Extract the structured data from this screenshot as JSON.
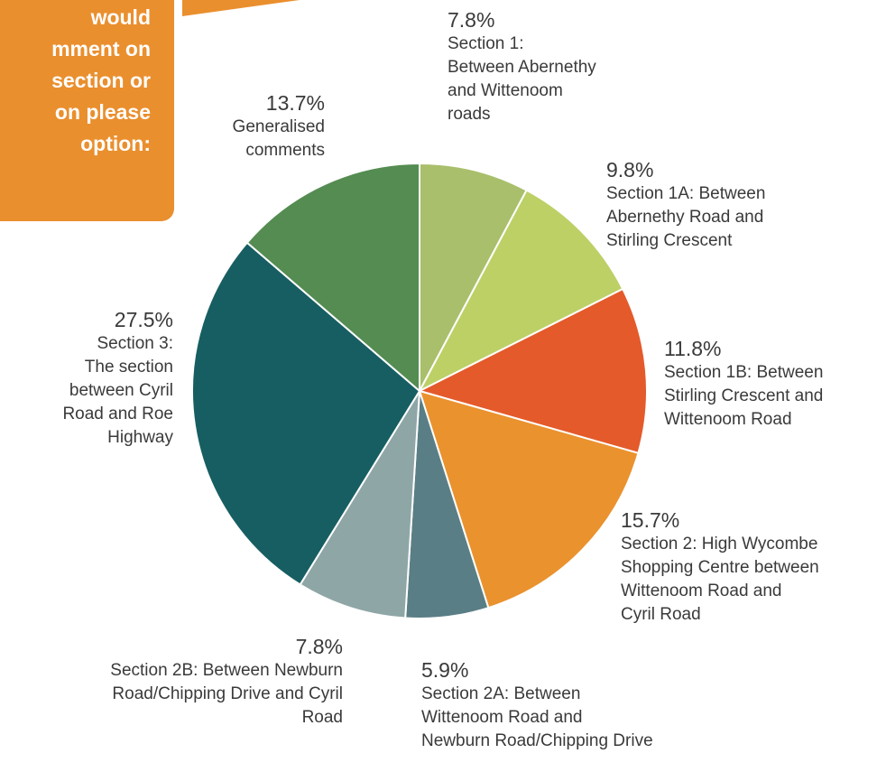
{
  "callout": {
    "text": "would\nmment on\nsection or\non please\noption:"
  },
  "colors": {
    "accent": "#ea8f2e",
    "slice_border": "#ffffff"
  },
  "chart_data": {
    "type": "pie",
    "title": "",
    "slices": [
      {
        "label": "Section 1:\nBetween Abernethy\nand Wittenoom\nroads",
        "percent_label": "7.8%",
        "value": 7.8,
        "color": "#a9bf6b"
      },
      {
        "label": "Section 1A: Between\nAbernethy Road and\nStirling Crescent",
        "percent_label": "9.8%",
        "value": 9.8,
        "color": "#bcd066"
      },
      {
        "label": "Section 1B: Between\nStirling Crescent and\nWittenoom Road",
        "percent_label": "11.8%",
        "value": 11.8,
        "color": "#e45a2a"
      },
      {
        "label": "Section 2: High Wycombe\nShopping Centre between\nWittenoom Road and\nCyril Road",
        "percent_label": "15.7%",
        "value": 15.7,
        "color": "#ea922e"
      },
      {
        "label": "Section 2A: Between\nWittenoom Road and\nNewburn Road/Chipping Drive",
        "percent_label": "5.9%",
        "value": 5.9,
        "color": "#5a7e85"
      },
      {
        "label": "Section 2B: Between Newburn\nRoad/Chipping Drive and Cyril Road",
        "percent_label": "7.8%",
        "value": 7.8,
        "color": "#8fa6a7"
      },
      {
        "label": "Section 3:\nThe section\nbetween Cyril\nRoad and Roe\nHighway",
        "percent_label": "27.5%",
        "value": 27.5,
        "color": "#175e62"
      },
      {
        "label": "Generalised\ncomments",
        "percent_label": "13.7%",
        "value": 13.7,
        "color": "#548c52"
      }
    ]
  }
}
